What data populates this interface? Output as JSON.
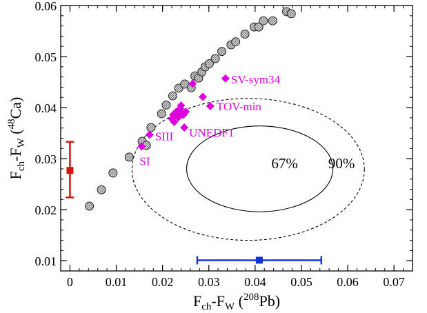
{
  "chart_data": {
    "type": "scatter",
    "xlim": [
      -0.002,
      0.074
    ],
    "ylim": [
      0.008,
      0.06
    ],
    "x_ticks": [
      0,
      0.01,
      0.02,
      0.03,
      0.04,
      0.05,
      0.06,
      0.07
    ],
    "x_tick_labels": [
      "0",
      "0.01",
      "0.02",
      "0.03",
      "0.04",
      "0.05",
      "0.06",
      "0.07"
    ],
    "y_ticks": [
      0.01,
      0.02,
      0.03,
      0.04,
      0.05,
      0.06
    ],
    "y_tick_labels": [
      "0.01",
      "0.02",
      "0.03",
      "0.04",
      "0.05",
      "0.06"
    ],
    "xlabel": {
      "base": "F",
      "sub1": "ch",
      "mid": "-F",
      "sub2": "W",
      "paren_open": " (",
      "sup": "208",
      "tail": "Pb)"
    },
    "ylabel": {
      "base": "F",
      "sub1": "ch",
      "mid": "-F",
      "sub2": "W",
      "paren_open": " (",
      "sup": "48",
      "tail": "Ca)"
    },
    "grid": false,
    "colors": {
      "circle_fill": "#bdbdbd",
      "circle_stroke": "#222222",
      "magenta": "#dd00dd",
      "red": "#dd1111",
      "blue": "#1133dd",
      "ellipse": "#000000"
    },
    "circles": [
      [
        0.0042,
        0.0207
      ],
      [
        0.0068,
        0.0239
      ],
      [
        0.0093,
        0.0272
      ],
      [
        0.0128,
        0.0303
      ],
      [
        0.0156,
        0.0334
      ],
      [
        0.0165,
        0.0326
      ],
      [
        0.0175,
        0.0361
      ],
      [
        0.0198,
        0.0388
      ],
      [
        0.0208,
        0.0405
      ],
      [
        0.0222,
        0.0423
      ],
      [
        0.0235,
        0.0438
      ],
      [
        0.0248,
        0.0446
      ],
      [
        0.0262,
        0.0439
      ],
      [
        0.027,
        0.0462
      ],
      [
        0.0278,
        0.0458
      ],
      [
        0.0285,
        0.047
      ],
      [
        0.0292,
        0.048
      ],
      [
        0.0301,
        0.0486
      ],
      [
        0.0314,
        0.0496
      ],
      [
        0.0328,
        0.051
      ],
      [
        0.0348,
        0.0523
      ],
      [
        0.0358,
        0.0529
      ],
      [
        0.0378,
        0.0544
      ],
      [
        0.0398,
        0.0558
      ],
      [
        0.0408,
        0.0558
      ],
      [
        0.0418,
        0.057
      ],
      [
        0.0438,
        0.057
      ],
      [
        0.0468,
        0.0588
      ],
      [
        0.0478,
        0.0584
      ]
    ],
    "diamonds": [
      [
        0.0155,
        0.0324
      ],
      [
        0.0172,
        0.0347
      ],
      [
        0.022,
        0.0378
      ],
      [
        0.0223,
        0.0386
      ],
      [
        0.0225,
        0.0372
      ],
      [
        0.023,
        0.0392
      ],
      [
        0.0234,
        0.0381
      ],
      [
        0.0238,
        0.0398
      ],
      [
        0.024,
        0.0404
      ],
      [
        0.0243,
        0.0389
      ],
      [
        0.0245,
        0.0386
      ],
      [
        0.0247,
        0.0361
      ],
      [
        0.025,
        0.0392
      ],
      [
        0.0265,
        0.0447
      ],
      [
        0.0287,
        0.0421
      ],
      [
        0.0303,
        0.0403
      ],
      [
        0.0336,
        0.0457
      ]
    ],
    "model_labels": [
      {
        "text": "SV-sym34",
        "x": 0.0336,
        "y": 0.0457
      },
      {
        "text": "TOV-min",
        "x": 0.0303,
        "y": 0.0403
      },
      {
        "text": "UNEDF1",
        "x": 0.0247,
        "y": 0.0361
      },
      {
        "text": "SIII",
        "x": 0.0172,
        "y": 0.0347
      },
      {
        "text": "SI",
        "x": 0.0155,
        "y": 0.0324
      }
    ],
    "red_point": {
      "x": 0.0,
      "y": 0.0277,
      "ylow": 0.0224,
      "yhigh": 0.0333
    },
    "blue_point": {
      "x": 0.0409,
      "y": 0.0101,
      "xlow": 0.0275,
      "xhigh": 0.0543
    },
    "ellipses": [
      {
        "label": "67%",
        "cx": 0.041,
        "cy": 0.028,
        "rx": 0.0158,
        "ry": 0.0084,
        "dashed": false
      },
      {
        "label": "90%",
        "cx": 0.0385,
        "cy": 0.0279,
        "rx": 0.0251,
        "ry": 0.0139,
        "dashed": true
      }
    ]
  }
}
